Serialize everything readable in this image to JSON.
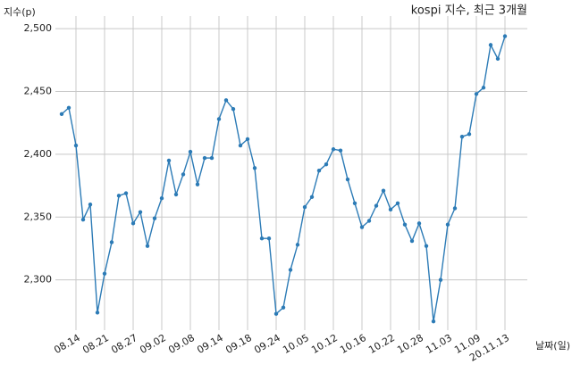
{
  "chart_data": {
    "type": "line",
    "title": "kospi 지수, 최근 3개월",
    "y_label": "지수(p)",
    "x_label": "날짜(일)",
    "categories": [
      null,
      null,
      "08.14",
      null,
      null,
      null,
      "08.21",
      null,
      null,
      null,
      "08.27",
      null,
      null,
      null,
      "09.02",
      null,
      null,
      null,
      "09.08",
      null,
      null,
      null,
      "09.14",
      null,
      null,
      null,
      "09.18",
      null,
      null,
      null,
      "09.24",
      null,
      null,
      null,
      "10.05",
      null,
      null,
      null,
      "10.12",
      null,
      null,
      null,
      "10.16",
      null,
      null,
      null,
      "10.22",
      null,
      null,
      null,
      "10.28",
      null,
      null,
      null,
      "11.03",
      null,
      null,
      null,
      "11.09",
      null,
      null,
      null,
      "20.11.13"
    ],
    "series": [
      {
        "name": "kospi",
        "color": "#2c7bb6",
        "values": [
          2432,
          2437,
          2407,
          2348,
          2360,
          2274,
          2305,
          2330,
          2367,
          2369,
          2345,
          2354,
          2327,
          2349,
          2365,
          2395,
          2368,
          2384,
          2402,
          2376,
          2397,
          2397,
          2428,
          2443,
          2436,
          2407,
          2412,
          2389,
          2333,
          2333,
          2273,
          2278,
          2308,
          2328,
          2358,
          2366,
          2387,
          2392,
          2404,
          2403,
          2380,
          2361,
          2342,
          2347,
          2359,
          2371,
          2356,
          2361,
          2344,
          2331,
          2345,
          2327,
          2267,
          2300,
          2344,
          2357,
          2414,
          2416,
          2448,
          2453,
          2487,
          2476,
          2494
        ]
      }
    ],
    "ylim": [
      2260,
      2510
    ],
    "yticks": [
      {
        "value": 2300,
        "label": "2,300"
      },
      {
        "value": 2350,
        "label": "2,350"
      },
      {
        "value": 2400,
        "label": "2,400"
      },
      {
        "value": 2450,
        "label": "2,450"
      },
      {
        "value": 2500,
        "label": "2,500"
      }
    ],
    "grid": true
  }
}
